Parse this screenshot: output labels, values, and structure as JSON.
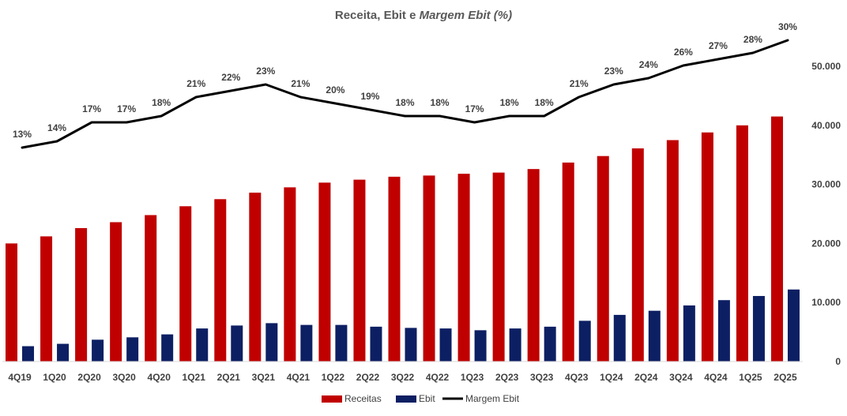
{
  "chart_data": {
    "type": "bar",
    "title_main": "Receita, Ebit e ",
    "title_italic": "Margem Ebit (%)",
    "categories": [
      "4Q19",
      "1Q20",
      "2Q20",
      "3Q20",
      "4Q20",
      "1Q21",
      "2Q21",
      "3Q21",
      "4Q21",
      "1Q22",
      "2Q22",
      "3Q22",
      "4Q22",
      "1Q23",
      "2Q23",
      "3Q23",
      "4Q23",
      "1Q24",
      "2Q24",
      "3Q24",
      "4Q24",
      "1Q25",
      "2Q25"
    ],
    "series": [
      {
        "name": "Receitas",
        "kind": "bar",
        "axis": "right",
        "color": "#c00000",
        "values": [
          20000,
          21200,
          22600,
          23600,
          24800,
          26300,
          27500,
          28600,
          29500,
          30300,
          30800,
          31300,
          31500,
          31800,
          32000,
          32600,
          33700,
          34800,
          36100,
          37500,
          38800,
          40000,
          41500
        ]
      },
      {
        "name": "Ebit",
        "kind": "bar",
        "axis": "right",
        "color": "#0d1f63",
        "values": [
          2600,
          3000,
          3700,
          4100,
          4600,
          5600,
          6100,
          6500,
          6200,
          6200,
          5900,
          5700,
          5600,
          5300,
          5600,
          5900,
          6900,
          7900,
          8600,
          9500,
          10400,
          11100,
          12200
        ]
      },
      {
        "name": "Margem Ebit",
        "kind": "line",
        "axis": "left-hidden",
        "color": "#000000",
        "values": [
          13,
          14,
          17,
          17,
          18,
          21,
          22,
          23,
          21,
          20,
          19,
          18,
          18,
          17,
          18,
          18,
          21,
          23,
          24,
          26,
          27,
          28,
          30
        ],
        "labels": [
          "13%",
          "14%",
          "17%",
          "17%",
          "18%",
          "21%",
          "22%",
          "23%",
          "21%",
          "20%",
          "19%",
          "18%",
          "18%",
          "17%",
          "18%",
          "18%",
          "21%",
          "23%",
          "24%",
          "26%",
          "27%",
          "28%",
          "30%"
        ]
      }
    ],
    "y_right": {
      "ylim": [
        0,
        50000
      ],
      "ticks": [
        0,
        10000,
        20000,
        30000,
        40000,
        50000
      ],
      "tick_labels": [
        "0",
        "10.000",
        "20.000",
        "30.000",
        "40.000",
        "50.000"
      ]
    },
    "legend": {
      "position": "bottom",
      "items": [
        "Receitas",
        "Ebit",
        "Margem Ebit"
      ]
    },
    "grid": false
  }
}
